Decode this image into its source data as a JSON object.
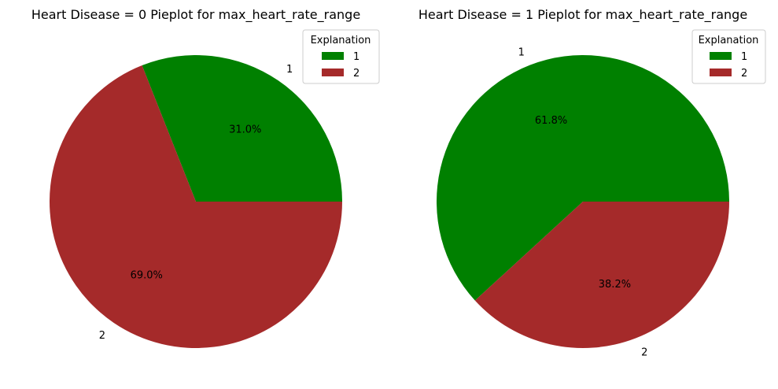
{
  "chart_data": [
    {
      "type": "pie",
      "title": "Heart Disease = 0 Pieplot for max_heart_rate_range",
      "categories": [
        "1",
        "2"
      ],
      "values": [
        31.0,
        69.0
      ],
      "labels": [
        "31.0%",
        "69.0%"
      ],
      "colors": [
        "#008000",
        "#a52a2a"
      ],
      "start_angle": 0,
      "legend": {
        "title": "Explanation",
        "entries": [
          "1",
          "2"
        ],
        "placement": "top-right"
      }
    },
    {
      "type": "pie",
      "title": "Heart Disease = 1 Pieplot for max_heart_rate_range",
      "categories": [
        "1",
        "2"
      ],
      "values": [
        61.8,
        38.2
      ],
      "labels": [
        "61.8%",
        "38.2%"
      ],
      "colors": [
        "#008000",
        "#a52a2a"
      ],
      "start_angle": 0,
      "legend": {
        "title": "Explanation",
        "entries": [
          "1",
          "2"
        ],
        "placement": "top-right"
      }
    }
  ]
}
